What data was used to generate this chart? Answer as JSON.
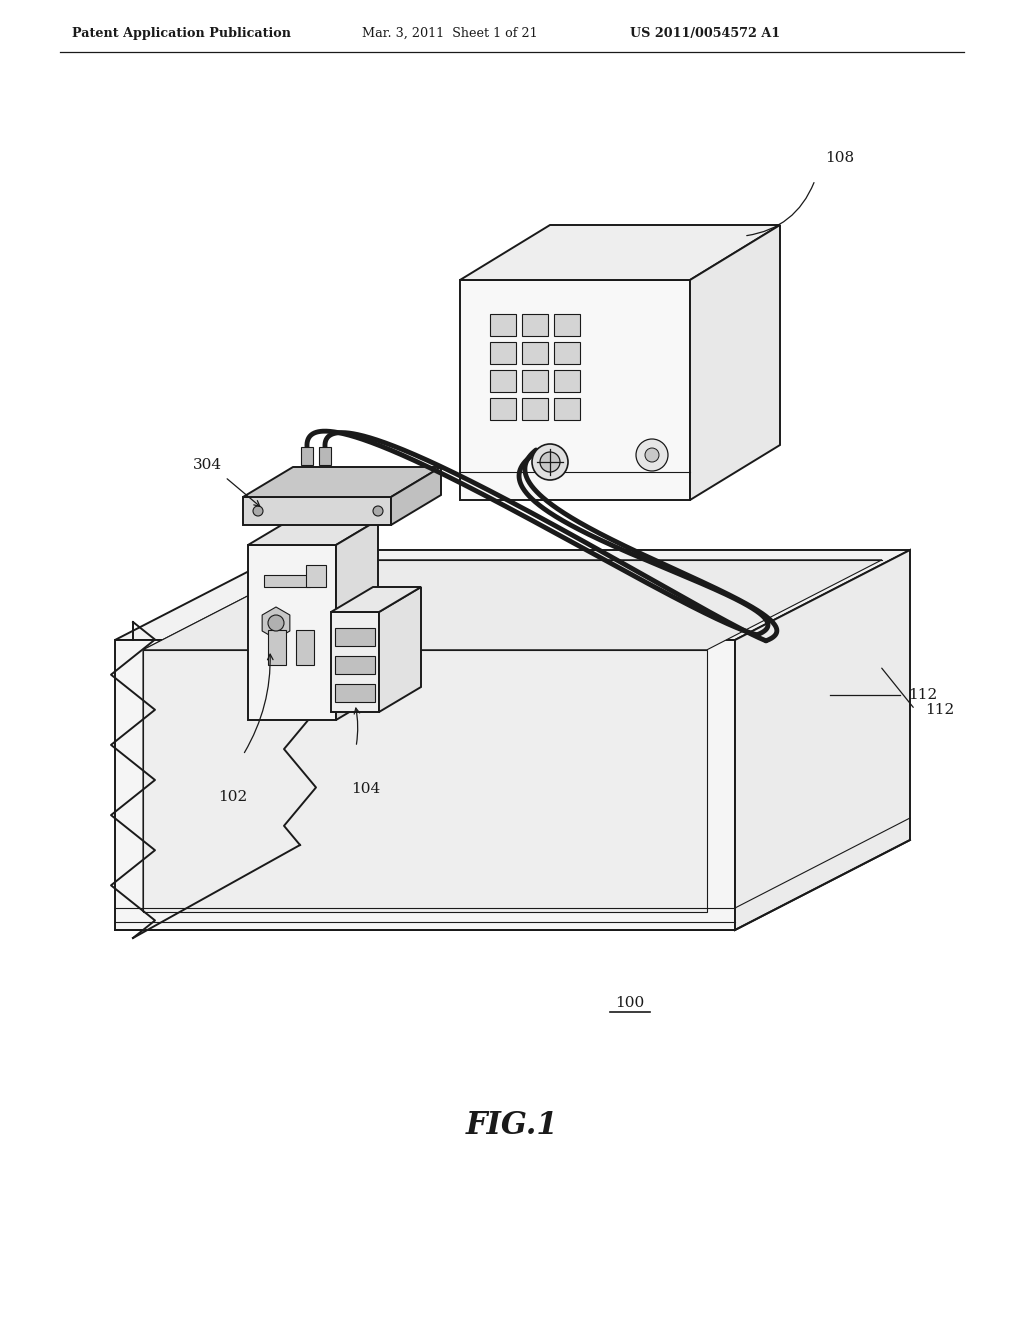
{
  "header_left": "Patent Application Publication",
  "header_mid": "Mar. 3, 2011  Sheet 1 of 21",
  "header_right": "US 2011/0054572 A1",
  "fig_label": "FIG.1",
  "ref_100": "100",
  "ref_102": "102",
  "ref_104": "104",
  "ref_108": "108",
  "ref_112": "112",
  "ref_304": "304",
  "bg_color": "#ffffff",
  "lc": "#1a1a1a",
  "lw": 1.4,
  "tlw": 0.8,
  "clw": 3.5
}
